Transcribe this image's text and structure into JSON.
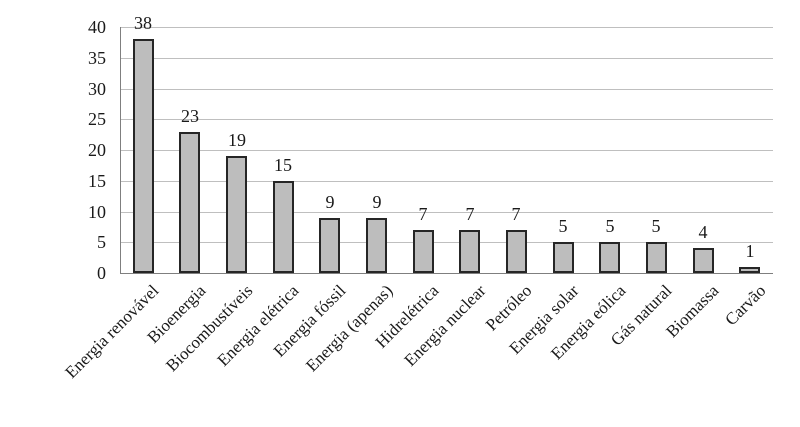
{
  "chart_data": {
    "type": "bar",
    "title": "",
    "xlabel": "",
    "ylabel": "",
    "categories": [
      "Energia renovável",
      "Bioenergia",
      "Biocombustíveis",
      "Energia elétrica",
      "Energia fóssil",
      "Energia (apenas)",
      "Hidrelétrica",
      "Energia nuclear",
      "Petróleo",
      "Energia solar",
      "Energia eólica",
      "Gás natural",
      "Biomassa",
      "Carvão"
    ],
    "values": [
      38,
      23,
      19,
      15,
      9,
      9,
      7,
      7,
      7,
      5,
      5,
      5,
      4,
      1
    ],
    "ylim": [
      0,
      40
    ],
    "ytick_step": 5,
    "ytick_labels": [
      "0",
      "5",
      "10",
      "15",
      "20",
      "25",
      "30",
      "35",
      "40"
    ],
    "grid": true,
    "legend": "none",
    "colors": {
      "bar_fill": "#bdbdbd",
      "bar_border": "#262626",
      "gridline": "#bfbfbf",
      "axis": "#7f7f7f",
      "text": "#1a1a1a",
      "background": "#ffffff"
    }
  }
}
